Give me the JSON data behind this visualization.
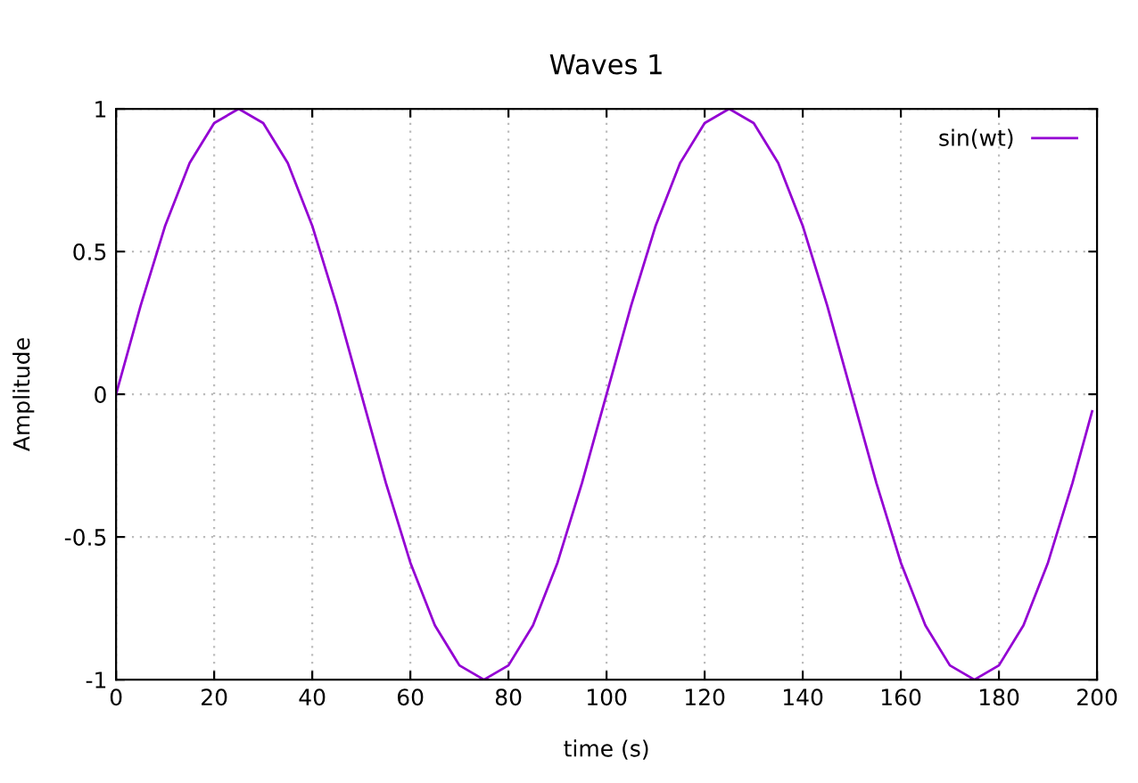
{
  "chart_data": {
    "type": "line",
    "title": "Waves 1",
    "xlabel": "time (s)",
    "ylabel": "Amplitude",
    "xlim": [
      0,
      200
    ],
    "xticks": [
      0,
      20,
      40,
      60,
      80,
      100,
      120,
      140,
      160,
      180,
      200
    ],
    "ylim": [
      -1,
      1
    ],
    "yticks": [
      -1,
      -0.5,
      0,
      0.5,
      1
    ],
    "grid": true,
    "legend": "top right",
    "line_style": "solid",
    "marker": "none",
    "series": [
      {
        "name": "sin(wt)",
        "color": "#9400d3",
        "x": [
          0,
          5,
          10,
          15,
          20,
          25,
          30,
          35,
          40,
          45,
          50,
          55,
          60,
          65,
          70,
          75,
          80,
          85,
          90,
          95,
          100,
          105,
          110,
          115,
          120,
          125,
          130,
          135,
          140,
          145,
          150,
          155,
          160,
          165,
          170,
          175,
          180,
          185,
          190,
          195,
          199
        ],
        "values": [
          0,
          0.31,
          0.59,
          0.81,
          0.95,
          1,
          0.95,
          0.81,
          0.59,
          0.31,
          0,
          -0.31,
          -0.59,
          -0.81,
          -0.95,
          -1,
          -0.95,
          -0.81,
          -0.59,
          -0.31,
          0,
          0.31,
          0.59,
          0.81,
          0.95,
          1,
          0.95,
          0.81,
          0.59,
          0.31,
          0,
          -0.31,
          -0.59,
          -0.81,
          -0.95,
          -1,
          -0.95,
          -0.81,
          -0.59,
          -0.31,
          -0.06
        ]
      }
    ]
  }
}
